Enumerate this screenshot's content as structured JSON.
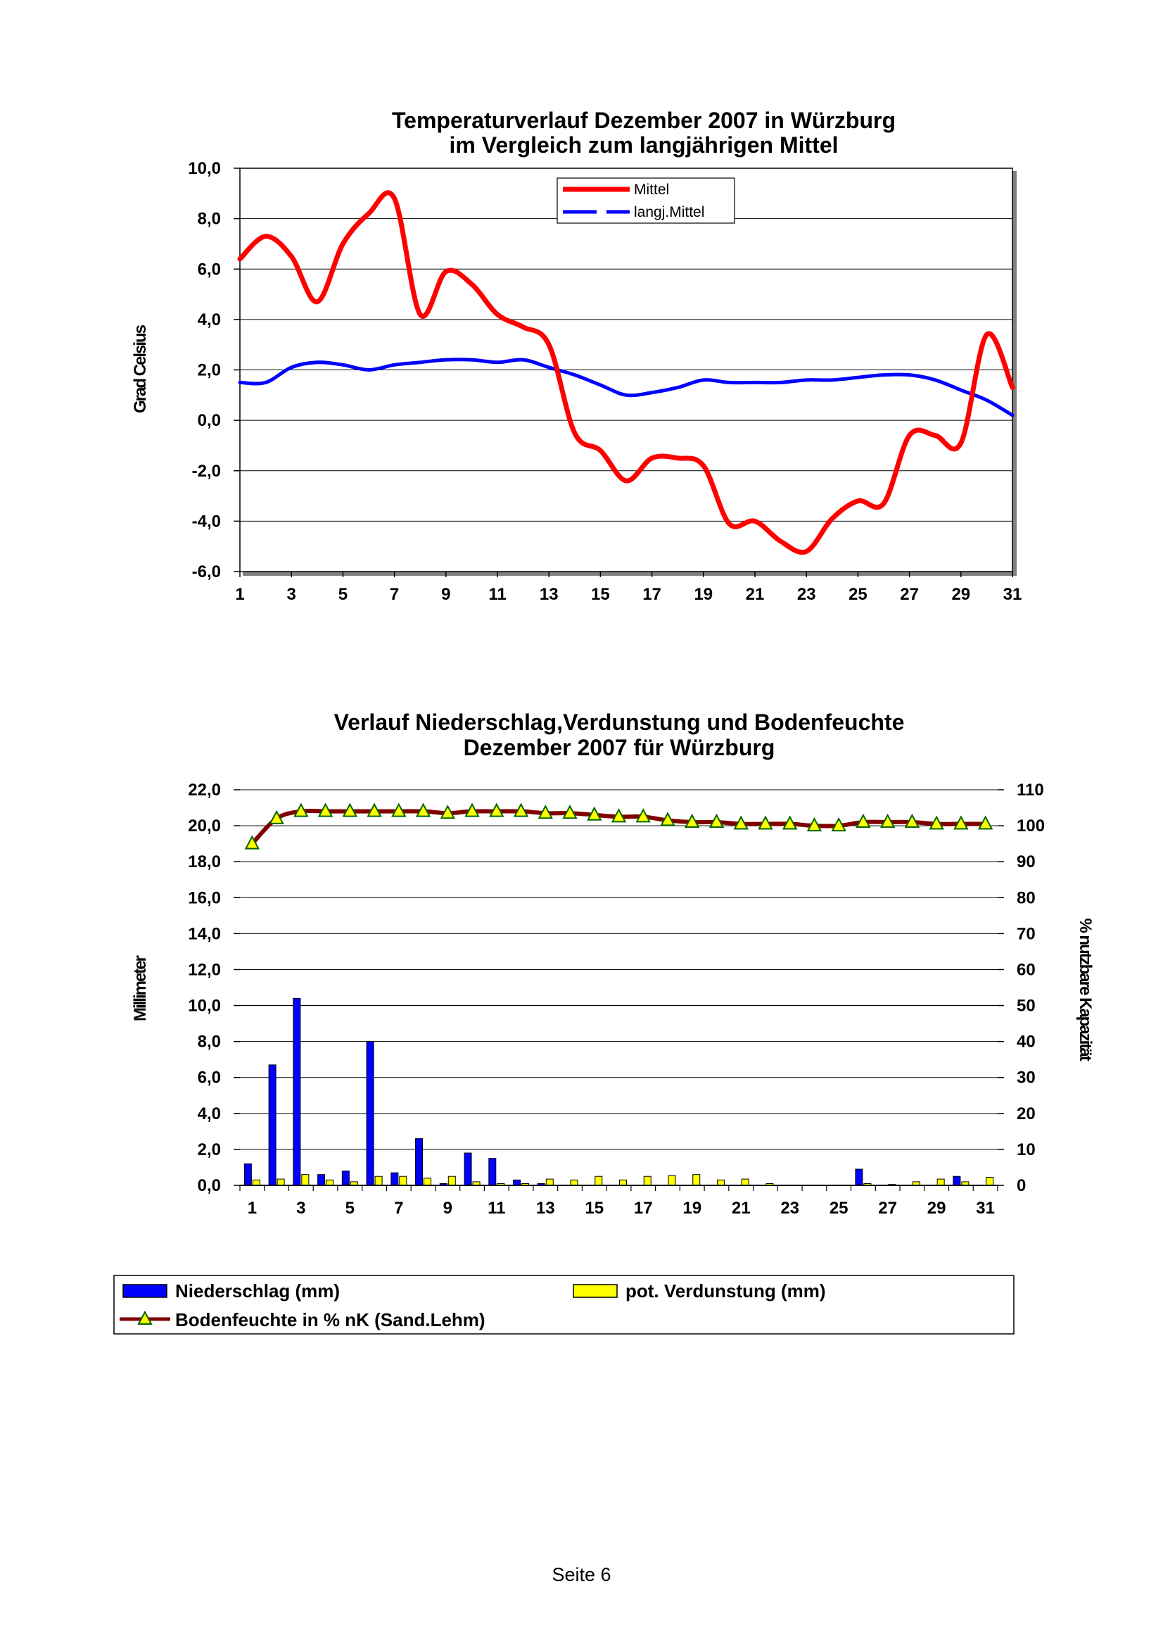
{
  "footer": "Seite 6",
  "chart_data": [
    {
      "type": "line",
      "title": [
        "Temperaturverlauf Dezember 2007 in Würzburg",
        "im Vergleich zum langjährigen Mittel"
      ],
      "xlabel": "",
      "ylabel": "Grad Celsius",
      "ylim": [
        -6,
        10
      ],
      "yticks": [
        "10,0",
        "8,0",
        "6,0",
        "4,0",
        "2,0",
        "0,0",
        "-2,0",
        "-4,0",
        "-6,0"
      ],
      "xticks": [
        "1",
        "3",
        "5",
        "7",
        "9",
        "11",
        "13",
        "15",
        "17",
        "19",
        "21",
        "23",
        "25",
        "27",
        "29",
        "31"
      ],
      "grid": true,
      "legend_position": "top-center",
      "x": [
        1,
        2,
        3,
        4,
        5,
        6,
        7,
        8,
        9,
        10,
        11,
        12,
        13,
        14,
        15,
        16,
        17,
        18,
        19,
        20,
        21,
        22,
        23,
        24,
        25,
        26,
        27,
        28,
        29,
        30,
        31
      ],
      "series": [
        {
          "name": "Mittel",
          "color": "#ff0000",
          "values": [
            6.4,
            7.3,
            6.5,
            4.7,
            7.0,
            8.2,
            8.8,
            4.2,
            5.9,
            5.4,
            4.2,
            3.7,
            3.0,
            -0.5,
            -1.2,
            -2.4,
            -1.5,
            -1.5,
            -1.8,
            -4.1,
            -4.0,
            -4.8,
            -5.2,
            -3.9,
            -3.2,
            -3.3,
            -0.6,
            -0.6,
            -0.9,
            3.4,
            1.3
          ]
        },
        {
          "name": "langj.Mittel",
          "color": "#0000ff",
          "values": [
            1.5,
            1.5,
            2.1,
            2.3,
            2.2,
            2.0,
            2.2,
            2.3,
            2.4,
            2.4,
            2.3,
            2.4,
            2.1,
            1.8,
            1.4,
            1.0,
            1.1,
            1.3,
            1.6,
            1.5,
            1.5,
            1.5,
            1.6,
            1.6,
            1.7,
            1.8,
            1.8,
            1.6,
            1.2,
            0.8,
            0.2
          ]
        }
      ]
    },
    {
      "type": "bar",
      "title": [
        "Verlauf Niederschlag,Verdunstung und Bodenfeuchte",
        "Dezember 2007 für Würzburg"
      ],
      "xlabel": "",
      "ylabel": "Millimeter",
      "y2label": "% nutzbare Kapazität",
      "ylim": [
        0,
        22
      ],
      "y2lim": [
        0,
        110
      ],
      "yticks": [
        "22,0",
        "20,0",
        "18,0",
        "16,0",
        "14,0",
        "12,0",
        "10,0",
        "8,0",
        "6,0",
        "4,0",
        "2,0",
        "0,0"
      ],
      "y2ticks": [
        "110",
        "100",
        "90",
        "80",
        "70",
        "60",
        "50",
        "40",
        "30",
        "20",
        "10",
        "0"
      ],
      "xticks": [
        "1",
        "3",
        "5",
        "7",
        "9",
        "11",
        "13",
        "15",
        "17",
        "19",
        "21",
        "23",
        "25",
        "27",
        "29",
        "31"
      ],
      "grid": true,
      "legend_position": "bottom",
      "categories": [
        1,
        2,
        3,
        4,
        5,
        6,
        7,
        8,
        9,
        10,
        11,
        12,
        13,
        14,
        15,
        16,
        17,
        18,
        19,
        20,
        21,
        22,
        23,
        24,
        25,
        26,
        27,
        28,
        29,
        30,
        31
      ],
      "series": [
        {
          "name": "Niederschlag (mm)",
          "color": "#0000ff",
          "axis": "left",
          "kind": "bar",
          "values": [
            1.2,
            6.7,
            10.4,
            0.6,
            0.8,
            8.0,
            0.7,
            2.6,
            0.1,
            1.8,
            1.5,
            0.3,
            0.1,
            0,
            0,
            0,
            0,
            0,
            0,
            0,
            0,
            0,
            0,
            0,
            0,
            0.9,
            0,
            0,
            0,
            0.5,
            0
          ]
        },
        {
          "name": "pot. Verdunstung (mm)",
          "color": "#ffff00",
          "axis": "left",
          "kind": "bar",
          "values": [
            0.3,
            0.35,
            0.6,
            0.3,
            0.2,
            0.5,
            0.5,
            0.4,
            0.5,
            0.2,
            0.1,
            0.1,
            0.35,
            0.3,
            0.5,
            0.3,
            0.5,
            0.55,
            0.6,
            0.3,
            0.35,
            0.1,
            0,
            0,
            0,
            0.1,
            0.05,
            0.2,
            0.35,
            0.2,
            0.45
          ]
        },
        {
          "name": "Bodenfeuchte in % nK (Sand.Lehm)",
          "color": "#800000",
          "marker_color": "#ffff00",
          "axis": "right",
          "kind": "line",
          "values": [
            95,
            102,
            104,
            104,
            104,
            104,
            104,
            104,
            103.5,
            104,
            104,
            104,
            103.5,
            103.5,
            103,
            102.5,
            102.5,
            101.5,
            101,
            101,
            100.5,
            100.5,
            100.5,
            100,
            100,
            101,
            101,
            101,
            100.5,
            100.5,
            100.5
          ]
        }
      ]
    }
  ]
}
